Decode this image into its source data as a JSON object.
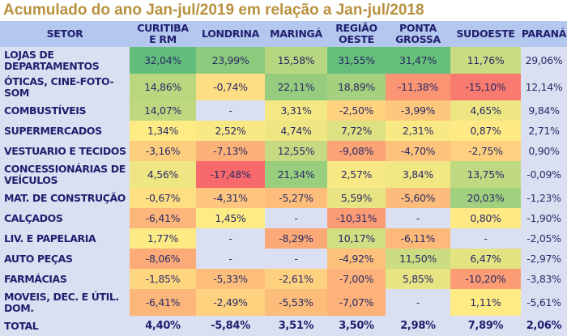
{
  "title": "Acumulado do ano Jan-jul/2019 em relação a Jan-jul/2018",
  "chart_data": {
    "type": "heatmap",
    "title": "Acumulado do ano Jan-jul/2019 em relação a Jan-jul/2018",
    "row_header": "SETOR",
    "columns": [
      "CURITIBA E RM",
      "LONDRINA",
      "MARINGÁ",
      "REGIÃO OESTE",
      "PONTA GROSSA",
      "SUDOESTE",
      "PARANÁ"
    ],
    "column_labels": [
      [
        "CURITIBA",
        "E RM"
      ],
      [
        "LONDRINA"
      ],
      [
        "MARINGÁ"
      ],
      [
        "REGIÃO",
        "OESTE"
      ],
      [
        "PONTA",
        "GROSSA"
      ],
      [
        "SUDOESTE"
      ],
      [
        "PARANÁ"
      ]
    ],
    "rows": [
      {
        "label": [
          "LOJAS DE",
          "DEPARTAMENTOS"
        ],
        "values": [
          "32,04%",
          "23,99%",
          "15,58%",
          "31,55%",
          "31,47%",
          "11,76%",
          "29,06%"
        ],
        "numeric": [
          32.04,
          23.99,
          15.58,
          31.55,
          31.47,
          11.76,
          29.06
        ]
      },
      {
        "label": [
          "ÓTICAS, CINE-FOTO-",
          "SOM"
        ],
        "values": [
          "14,86%",
          "-0,74%",
          "22,11%",
          "18,89%",
          "-11,38%",
          "-15,10%",
          "12,14%"
        ],
        "numeric": [
          14.86,
          -0.74,
          22.11,
          18.89,
          -11.38,
          -15.1,
          12.14
        ]
      },
      {
        "label": [
          "COMBUSTÍVEIS"
        ],
        "values": [
          "14,07%",
          "-",
          "3,31%",
          "-2,50%",
          "-3,99%",
          "4,65%",
          "9,84%"
        ],
        "numeric": [
          14.07,
          null,
          3.31,
          -2.5,
          -3.99,
          4.65,
          9.84
        ]
      },
      {
        "label": [
          "SUPERMERCADOS"
        ],
        "values": [
          "1,34%",
          "2,52%",
          "4,74%",
          "7,72%",
          "2,31%",
          "0,87%",
          "2,71%"
        ],
        "numeric": [
          1.34,
          2.52,
          4.74,
          7.72,
          2.31,
          0.87,
          2.71
        ]
      },
      {
        "label": [
          "VESTUARIO E TECIDOS"
        ],
        "values": [
          "-3,16%",
          "-7,13%",
          "12,55%",
          "-9,08%",
          "-4,70%",
          "-2,75%",
          "0,90%"
        ],
        "numeric": [
          -3.16,
          -7.13,
          12.55,
          -9.08,
          -4.7,
          -2.75,
          0.9
        ]
      },
      {
        "label": [
          "CONCESSIONÁRIAS DE",
          "VEÍCULOS"
        ],
        "values": [
          "4,56%",
          "-17,48%",
          "21,34%",
          "2,57%",
          "3,84%",
          "13,75%",
          "-0,09%"
        ],
        "numeric": [
          4.56,
          -17.48,
          21.34,
          2.57,
          3.84,
          13.75,
          -0.09
        ]
      },
      {
        "label": [
          "MAT. DE CONSTRUÇÃO"
        ],
        "values": [
          "-0,67%",
          "-4,31%",
          "-5,27%",
          "5,59%",
          "-5,60%",
          "20,03%",
          "-1,23%"
        ],
        "numeric": [
          -0.67,
          -4.31,
          -5.27,
          5.59,
          -5.6,
          20.03,
          -1.23
        ]
      },
      {
        "label": [
          "CALÇADOS"
        ],
        "values": [
          "-6,41%",
          "1,45%",
          "-",
          "-10,31%",
          "-",
          "0,80%",
          "-1,90%"
        ],
        "numeric": [
          -6.41,
          1.45,
          null,
          -10.31,
          null,
          0.8,
          -1.9
        ]
      },
      {
        "label": [
          "LIV. E PAPELARIA"
        ],
        "values": [
          "1,77%",
          "-",
          "-8,29%",
          "10,17%",
          "-6,11%",
          "-",
          "-2,05%"
        ],
        "numeric": [
          1.77,
          null,
          -8.29,
          10.17,
          -6.11,
          null,
          -2.05
        ]
      },
      {
        "label": [
          "AUTO PEÇAS"
        ],
        "values": [
          "-8,06%",
          "-",
          "-",
          "-4,92%",
          "11,50%",
          "6,47%",
          "-2,97%"
        ],
        "numeric": [
          -8.06,
          null,
          null,
          -4.92,
          11.5,
          6.47,
          -2.97
        ]
      },
      {
        "label": [
          "FARMÁCIAS"
        ],
        "values": [
          "-1,85%",
          "-5,33%",
          "-2,61%",
          "-7,00%",
          "5,85%",
          "-10,20%",
          "-3,83%"
        ],
        "numeric": [
          -1.85,
          -5.33,
          -2.61,
          -7.0,
          5.85,
          -10.2,
          -3.83
        ]
      },
      {
        "label": [
          "MOVEIS, DEC. E ÚTIL.",
          "DOM."
        ],
        "values": [
          "-6,41%",
          "-2,49%",
          "-5,53%",
          "-7,07%",
          "-",
          "1,11%",
          "-5,61%"
        ],
        "numeric": [
          -6.41,
          -2.49,
          -5.53,
          -7.07,
          null,
          1.11,
          -5.61
        ]
      }
    ],
    "total": {
      "label": "TOTAL",
      "values": [
        "4,40%",
        "-5,84%",
        "3,51%",
        "3,50%",
        "2,98%",
        "7,89%",
        "2,06%"
      ],
      "numeric": [
        4.4,
        -5.84,
        3.51,
        3.5,
        2.98,
        7.89,
        2.06
      ]
    },
    "color_scale": {
      "low": "#F8696B",
      "mid": "#FFEB84",
      "high": "#63BE7B",
      "empty": "#DAE0F2"
    },
    "colored_columns": [
      "CURITIBA E RM",
      "LONDRINA",
      "MARINGÁ",
      "REGIÃO OESTE",
      "PONTA GROSSA",
      "SUDOESTE"
    ]
  }
}
